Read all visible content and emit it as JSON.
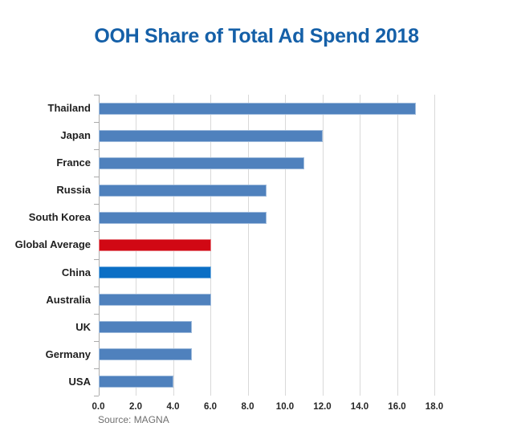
{
  "page": {
    "title": "OOH Share of Total Ad Spend 2018",
    "source_note": "Source: MAGNA"
  },
  "colors": {
    "title": "#1560A8",
    "bar_default": "#4F81BD",
    "bar_global_average": "#D10814",
    "bar_china": "#0B6FC5",
    "gridline": "#D9D9D9",
    "axis": "#ABABAB",
    "category_text": "#1F1F1F",
    "tick_text": "#262626",
    "source_text": "#6F6F6F"
  },
  "chart_data": {
    "type": "bar",
    "orientation": "horizontal",
    "title": "OOH Share of Total Ad Spend 2018",
    "categories": [
      "Thailand",
      "Japan",
      "France",
      "Russia",
      "South Korea",
      "Global Average",
      "China",
      "Australia",
      "UK",
      "Germany",
      "USA"
    ],
    "values": [
      17,
      12,
      11,
      9,
      9,
      6,
      6,
      6,
      5,
      5,
      4
    ],
    "bar_colors": [
      "#4F81BD",
      "#4F81BD",
      "#4F81BD",
      "#4F81BD",
      "#4F81BD",
      "#D10814",
      "#0B6FC5",
      "#4F81BD",
      "#4F81BD",
      "#4F81BD",
      "#4F81BD"
    ],
    "xlim": [
      0,
      18
    ],
    "xtick_labels": [
      "0.0",
      "2.0",
      "4.0",
      "6.0",
      "8.0",
      "10.0",
      "12.0",
      "14.0",
      "16.0",
      "18.0"
    ],
    "grid": true,
    "legend_position": "none",
    "annotation": "Source: MAGNA"
  }
}
